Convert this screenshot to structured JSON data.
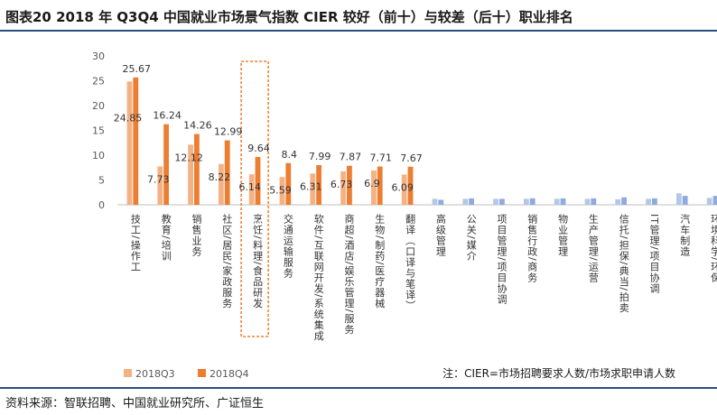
{
  "title": "图表20    2018 年 Q3Q4 中国就业市场景气指数 CIER 较好（前十）与较差（后十）职业排名",
  "source": "资料来源：智联招聘、中国就业研究所、广证恒生",
  "note": "注：CIER=市场招聘要求人数/市场求职申请人数",
  "chart_data": {
    "type": "bar",
    "ylim": [
      0,
      30
    ],
    "yticks": [
      0,
      5,
      10,
      15,
      20,
      25,
      30
    ],
    "categories": [
      "技工/操作工",
      "教育/培训",
      "销售业务",
      "社区/居民/家政服务",
      "烹饪/料理/食品研发",
      "交通运输服务",
      "软件/互联网开发/系统集成",
      "商超/酒店/娱乐管理/服务",
      "生物/制药/医疗器械",
      "翻译（口译与笔译）",
      "高级管理",
      "公关/媒介",
      "项目管理/项目协调",
      "销售行政/商务",
      "物业管理",
      "生产管理/运营",
      "信托/担保/典当/拍卖",
      "IT管理/项目协调",
      "汽车制造",
      "环境科学/环保"
    ],
    "series": [
      {
        "name": "2018Q3",
        "color": "#f4b183",
        "values": [
          24.85,
          7.73,
          12.12,
          8.22,
          6.14,
          5.59,
          6.31,
          6.73,
          6.9,
          6.09,
          1.2,
          1.2,
          1.2,
          1.2,
          1.2,
          1.2,
          1.1,
          1.2,
          2.3,
          1.4
        ],
        "labels": [
          "24.85",
          "7.73",
          "12.12",
          "8.22",
          "6.14",
          "5.59",
          "6.31",
          "6.73",
          "6.9",
          "6.09",
          "",
          "",
          "",
          "",
          "",
          "",
          "",
          "",
          "",
          ""
        ]
      },
      {
        "name": "2018Q4",
        "color": "#ed7d31",
        "values": [
          25.67,
          16.24,
          14.26,
          12.99,
          9.64,
          8.4,
          7.99,
          7.87,
          7.71,
          7.67,
          1.0,
          1.3,
          1.2,
          1.3,
          1.3,
          1.3,
          1.5,
          1.3,
          1.8,
          1.8
        ],
        "labels": [
          "25.67",
          "16.24",
          "14.26",
          "12.99",
          "9.64",
          "8.4",
          "7.99",
          "7.87",
          "7.71",
          "7.67",
          "",
          "",
          "",
          "",
          "",
          "",
          "",
          "",
          "",
          ""
        ]
      }
    ],
    "low_group_colors": [
      "#b4c7e7",
      "#8faadc"
    ],
    "highlighted_category": "烹饪/料理/食品研发",
    "legend_position": "bottom-left",
    "grid": false
  }
}
